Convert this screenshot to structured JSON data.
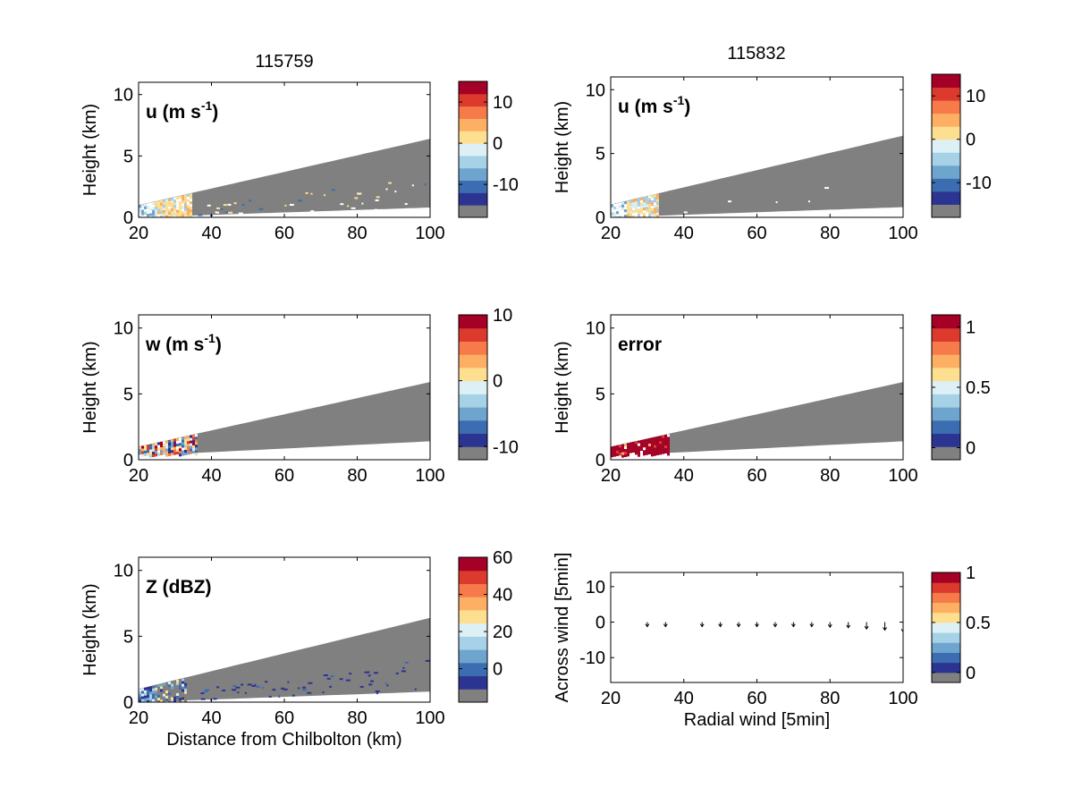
{
  "figure": {
    "column_titles": [
      "115759",
      "115832"
    ]
  },
  "colormap": [
    "#808080",
    "#2c3491",
    "#3c6db1",
    "#6ea5cf",
    "#a6d1e6",
    "#ddf0f6",
    "#fedf90",
    "#fdb064",
    "#f67a4a",
    "#db3a2c",
    "#a50026"
  ],
  "chart_data": [
    {
      "id": "u-115759",
      "type": "heatmap",
      "panel_label": "u (m s⁻¹)",
      "ylabel": "Height (km)",
      "xlabel": "",
      "xlim": [
        20,
        100
      ],
      "ylim": [
        0,
        11
      ],
      "xticks": [
        20,
        40,
        60,
        80,
        100
      ],
      "yticks": [
        0,
        5,
        10
      ],
      "beam": {
        "top": [
          [
            20,
            1.0
          ],
          [
            100,
            6.4
          ]
        ],
        "bottom": [
          [
            20,
            0.0
          ],
          [
            100,
            0.8
          ]
        ]
      },
      "colorbar": {
        "range": [
          -18,
          15
        ],
        "ticks": [
          10,
          0,
          -10
        ]
      },
      "coverage_end_km": 34,
      "scatter_categories": [
        "blue",
        "orange",
        "white"
      ]
    },
    {
      "id": "u-115832",
      "type": "heatmap",
      "panel_label": "u (m s⁻¹)",
      "ylabel": "Height (km)",
      "xlabel": "",
      "xlim": [
        20,
        100
      ],
      "ylim": [
        0,
        11
      ],
      "xticks": [
        20,
        40,
        60,
        80,
        100
      ],
      "yticks": [
        0,
        5,
        10
      ],
      "beam": {
        "top": [
          [
            20,
            1.0
          ],
          [
            100,
            6.4
          ]
        ],
        "bottom": [
          [
            20,
            0.0
          ],
          [
            100,
            0.8
          ]
        ]
      },
      "colorbar": {
        "range": [
          -18,
          15
        ],
        "ticks": [
          10,
          0,
          -10
        ]
      },
      "coverage_end_km": 33,
      "scatter_categories": [
        "orange",
        "white"
      ]
    },
    {
      "id": "w-115759",
      "type": "heatmap",
      "panel_label": "w (m s⁻¹)",
      "ylabel": "Height (km)",
      "xlabel": "",
      "xlim": [
        20,
        100
      ],
      "ylim": [
        0,
        11
      ],
      "xticks": [
        20,
        40,
        60,
        80,
        100
      ],
      "yticks": [
        0,
        5,
        10
      ],
      "beam": {
        "top": [
          [
            20,
            1.0
          ],
          [
            100,
            5.9
          ]
        ],
        "bottom": [
          [
            20,
            0.3
          ],
          [
            100,
            1.4
          ]
        ]
      },
      "colorbar": {
        "range": [
          -12,
          10
        ],
        "ticks": [
          10,
          0,
          -10
        ]
      },
      "coverage_end_km": 36
    },
    {
      "id": "error-115832",
      "type": "heatmap",
      "panel_label": "error",
      "ylabel": "Height (km)",
      "xlabel": "",
      "xlim": [
        20,
        100
      ],
      "ylim": [
        0,
        11
      ],
      "xticks": [
        20,
        40,
        60,
        80,
        100
      ],
      "yticks": [
        0,
        5,
        10
      ],
      "beam": {
        "top": [
          [
            20,
            1.0
          ],
          [
            100,
            5.9
          ]
        ],
        "bottom": [
          [
            20,
            0.3
          ],
          [
            100,
            1.4
          ]
        ]
      },
      "colorbar": {
        "range": [
          -0.1,
          1.1
        ],
        "ticks": [
          1,
          0.5,
          0
        ]
      },
      "coverage_end_km": 36
    },
    {
      "id": "z-115759",
      "type": "heatmap",
      "panel_label": "Z (dBZ)",
      "ylabel": "Height (km)",
      "xlabel": "Distance from Chilbolton (km)",
      "xlim": [
        20,
        100
      ],
      "ylim": [
        0,
        11
      ],
      "xticks": [
        20,
        40,
        60,
        80,
        100
      ],
      "yticks": [
        0,
        5,
        10
      ],
      "beam": {
        "top": [
          [
            20,
            1.0
          ],
          [
            100,
            6.4
          ]
        ],
        "bottom": [
          [
            20,
            0.0
          ],
          [
            100,
            0.8
          ]
        ]
      },
      "colorbar": {
        "range": [
          -18,
          60
        ],
        "ticks": [
          60,
          40,
          20,
          0
        ]
      },
      "coverage_end_km": 33
    },
    {
      "id": "wind-vectors",
      "type": "scatter",
      "panel_label": "",
      "ylabel": "Across wind [5min]",
      "xlabel": "Radial wind [5min]",
      "xlim": [
        20,
        100
      ],
      "ylim": [
        -17,
        14
      ],
      "xticks": [
        20,
        40,
        60,
        80,
        100
      ],
      "yticks": [
        10,
        0,
        -10
      ],
      "colorbar": {
        "range": [
          -0.1,
          1.0
        ],
        "ticks": [
          1,
          0.5,
          0
        ]
      },
      "x": [
        30,
        35,
        45,
        50,
        55,
        60,
        65,
        70,
        75,
        80,
        85,
        90,
        95,
        100
      ],
      "y": [
        0,
        0,
        0,
        0,
        0,
        0,
        0,
        0,
        0,
        0,
        0,
        0,
        0,
        0
      ],
      "v": [
        -0.8,
        -0.8,
        -0.8,
        -0.8,
        -0.8,
        -0.8,
        -0.8,
        -0.8,
        -0.8,
        -0.9,
        -1.0,
        -1.2,
        -1.4,
        -1.7
      ]
    }
  ]
}
